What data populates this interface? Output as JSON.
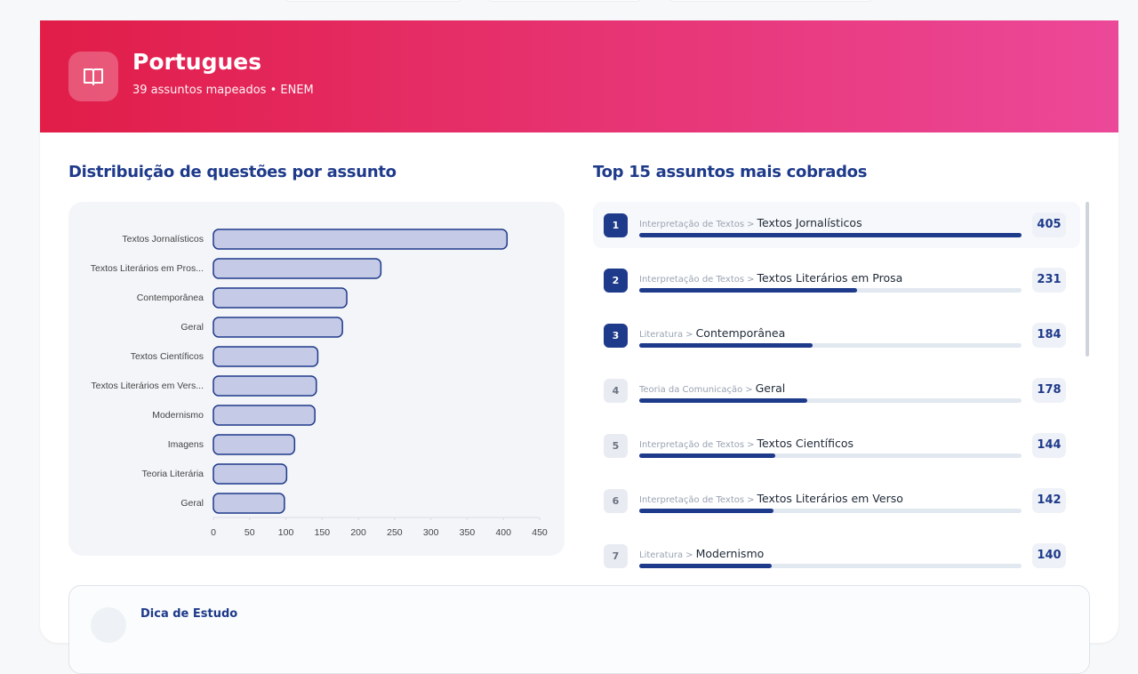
{
  "header": {
    "title": "Portugues",
    "subtitle": "39 assuntos mapeados • ENEM"
  },
  "chart_data": {
    "type": "bar",
    "orientation": "horizontal",
    "title": "Distribuição de questões por assunto",
    "categories": [
      "Textos Jornalísticos",
      "Textos Literários em Pros...",
      "Contemporânea",
      "Geral",
      "Textos Científicos",
      "Textos Literários em Vers...",
      "Modernismo",
      "Imagens",
      "Teoria Literária",
      "Geral"
    ],
    "values": [
      405,
      231,
      184,
      178,
      144,
      142,
      140,
      112,
      101,
      98
    ],
    "color": "#c5cae6",
    "edge_color": "#1e3a8a",
    "xlim": [
      0,
      450
    ],
    "xticks": [
      0,
      50,
      100,
      150,
      200,
      250,
      300,
      350,
      400,
      450
    ]
  },
  "top_list": {
    "title": "Top 15 assuntos mais cobrados",
    "separator": ">",
    "items": [
      {
        "rank": 1,
        "parent": "Interpretação de Textos",
        "name": "Textos Jornalísticos",
        "count": 405
      },
      {
        "rank": 2,
        "parent": "Interpretação de Textos",
        "name": "Textos Literários em Prosa",
        "count": 231
      },
      {
        "rank": 3,
        "parent": "Literatura",
        "name": "Contemporânea",
        "count": 184
      },
      {
        "rank": 4,
        "parent": "Teoria da Comunicação",
        "name": "Geral",
        "count": 178
      },
      {
        "rank": 5,
        "parent": "Interpretação de Textos",
        "name": "Textos Científicos",
        "count": 144
      },
      {
        "rank": 6,
        "parent": "Interpretação de Textos",
        "name": "Textos Literários em Verso",
        "count": 142
      },
      {
        "rank": 7,
        "parent": "Literatura",
        "name": "Modernismo",
        "count": 140
      }
    ]
  },
  "tip": {
    "title": "Dica de Estudo"
  }
}
